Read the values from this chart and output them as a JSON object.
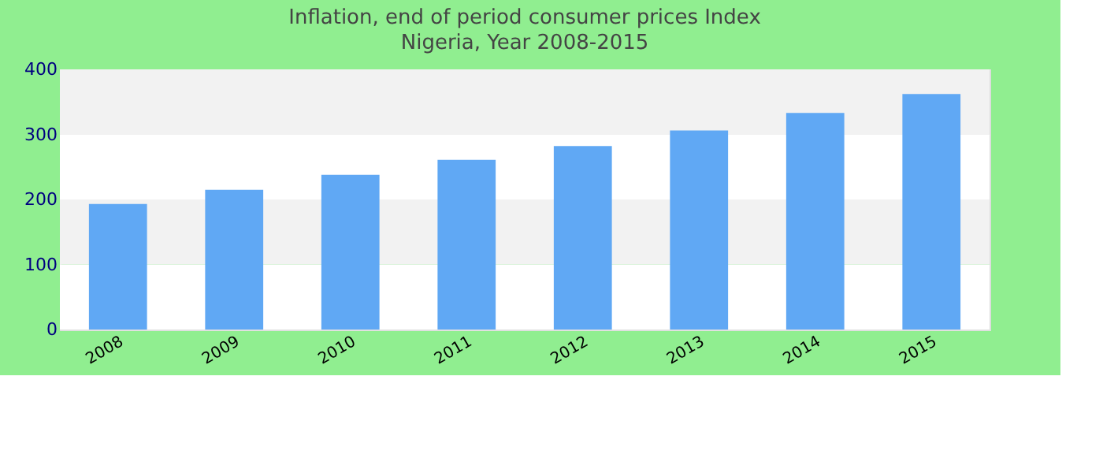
{
  "chart_data": {
    "type": "bar",
    "title": "Inflation, end of period consumer prices  Index",
    "subtitle": "Nigeria, Year 2008-2015",
    "categories": [
      "2008",
      "2009",
      "2010",
      "2011",
      "2012",
      "2013",
      "2014",
      "2015"
    ],
    "values": [
      193,
      215,
      238,
      261,
      282,
      306,
      333,
      362
    ],
    "color": "#60a8f4",
    "ylim": [
      0,
      400
    ],
    "yticks": [
      0,
      100,
      200,
      300,
      400
    ],
    "grid": "y"
  }
}
